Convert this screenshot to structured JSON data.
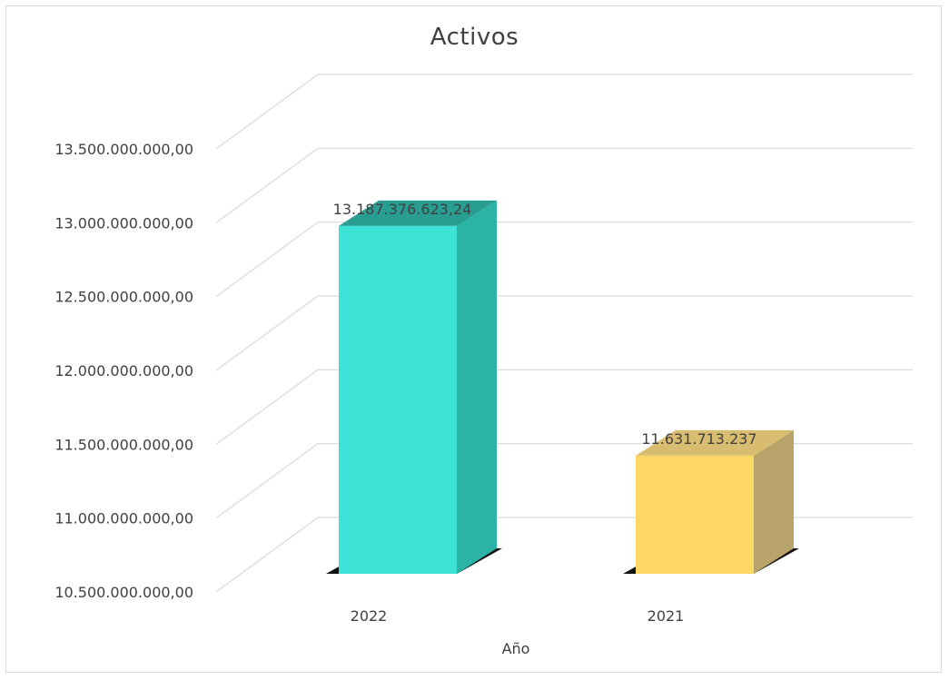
{
  "chart_data": {
    "type": "bar",
    "title": "Activos",
    "xlabel": "Año",
    "ylabel": "",
    "categories": [
      "2022",
      "2021"
    ],
    "values": [
      13187376623.24,
      11631713237
    ],
    "data_labels": [
      "13.187.376.623,24",
      "11.631.713.237"
    ],
    "ylim": [
      10500000000,
      13500000000
    ],
    "yticks": [
      10500000000,
      11000000000,
      11500000000,
      12000000000,
      12500000000,
      13000000000,
      13500000000
    ],
    "ytick_labels": [
      "10.500.000.000,00",
      "11.000.000.000,00",
      "11.500.000.000,00",
      "12.000.000.000,00",
      "12.500.000.000,00",
      "13.000.000.000,00",
      "13.500.000.000,00"
    ],
    "grid": true,
    "legend": "none",
    "style": "3d-column",
    "colors": {
      "2022": {
        "front": "#3de3d6",
        "side": "#2bb3a6",
        "top": "#2a9d92"
      },
      "2021": {
        "front": "#fcd766",
        "side": "#b8a46a",
        "top": "#d8bd70"
      }
    }
  }
}
